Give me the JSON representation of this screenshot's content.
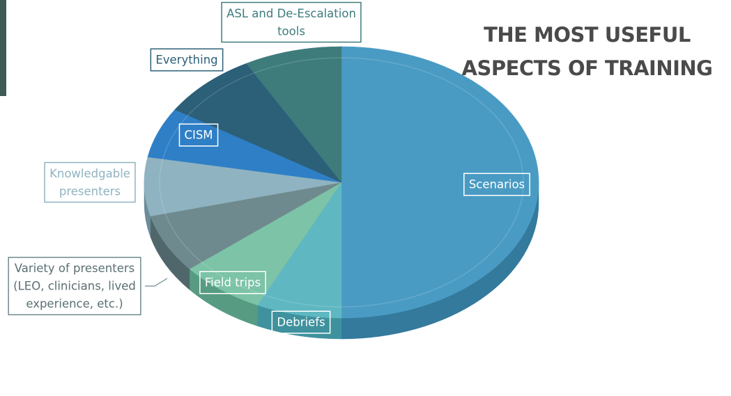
{
  "title_lines": [
    "THE MOST USEFUL",
    "ASPECTS OF TRAINING"
  ],
  "chart_data": {
    "type": "pie",
    "title": "THE MOST USEFUL ASPECTS OF TRAINING",
    "slices": [
      {
        "label": "Scenarios",
        "value": 50,
        "color": "#4a9bc3",
        "dark": "#337a9d",
        "label_lines": [
          "Scenarios"
        ]
      },
      {
        "label": "Debriefs",
        "value": 7,
        "color": "#5fb7c2",
        "dark": "#3f929d",
        "label_lines": [
          "Debriefs"
        ]
      },
      {
        "label": "Field trips",
        "value": 7,
        "color": "#7cc3a7",
        "dark": "#589b83",
        "label_lines": [
          "Field trips"
        ]
      },
      {
        "label": "Variety of presenters (LEO, clinicians, lived experience, etc.)",
        "value": 7,
        "color": "#6f8a8e",
        "dark": "#4f676b",
        "label_lines": [
          "Variety of presenters",
          "(LEO, clinicians, lived",
          "experience, etc.)"
        ]
      },
      {
        "label": "Knowledgable presenters",
        "value": 7,
        "color": "#8fb3c0",
        "dark": "#6b8d99",
        "label_lines": [
          "Knowledgable",
          "presenters"
        ]
      },
      {
        "label": "CISM",
        "value": 6,
        "color": "#2f7fc6",
        "dark": "#22609a",
        "label_lines": [
          "CISM"
        ]
      },
      {
        "label": "Everything",
        "value": 8,
        "color": "#2c5f78",
        "dark": "#1f4658",
        "label_lines": [
          "Everything"
        ]
      },
      {
        "label": "ASL and De-Escalation tools",
        "value": 8,
        "color": "#3e7c7c",
        "dark": "#2c5b5b",
        "label_lines": [
          "ASL and De-Escalation",
          "tools"
        ]
      }
    ]
  }
}
